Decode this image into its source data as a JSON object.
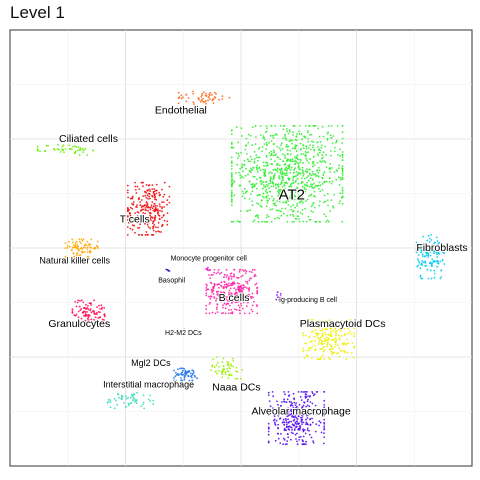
{
  "chart_data": {
    "type": "scatter",
    "title": "Level 1",
    "xlabel": "",
    "ylabel": "",
    "grid": true,
    "legend": "none",
    "xlim": [
      0,
      100
    ],
    "ylim": [
      0,
      100
    ],
    "clusters": [
      {
        "name": "AT2",
        "color": "#33ee33",
        "center": [
          60,
          67
        ],
        "spread": [
          12,
          11
        ],
        "count": 900,
        "label_pos": [
          61,
          62
        ],
        "label_size": "large"
      },
      {
        "name": "Endothelial",
        "color": "#ff6a1a",
        "center": [
          42,
          84.5
        ],
        "spread": [
          5.5,
          1.5
        ],
        "count": 55,
        "label_pos": [
          37,
          81.5
        ],
        "label_size": "medium"
      },
      {
        "name": "Ciliated cells",
        "color": "#66ee00",
        "center": [
          12,
          72.5
        ],
        "spread": [
          6,
          1.2
        ],
        "count": 45,
        "label_pos": [
          17,
          75
        ],
        "label_size": "medium"
      },
      {
        "name": "T cells",
        "color": "#ee1111",
        "center": [
          30,
          59
        ],
        "spread": [
          4.5,
          6
        ],
        "count": 260,
        "label_pos": [
          27,
          56.5
        ],
        "label_size": "medium"
      },
      {
        "name": "Natural killer cells",
        "color": "#ffaa00",
        "center": [
          15.5,
          50
        ],
        "spread": [
          3.5,
          2
        ],
        "count": 85,
        "label_pos": [
          14,
          47
        ],
        "label_size": "small"
      },
      {
        "name": "Monocyte progenitor cell",
        "color": "#ee00cc",
        "center": [
          43,
          45
        ],
        "spread": [
          0.8,
          0.5
        ],
        "count": 6,
        "label_pos": [
          43,
          47.5
        ],
        "label_size": "tiny"
      },
      {
        "name": "Basophil",
        "color": "#3300cc",
        "center": [
          34,
          45
        ],
        "spread": [
          0.5,
          0.4
        ],
        "count": 4,
        "label_pos": [
          35,
          42.5
        ],
        "label_size": "tiny"
      },
      {
        "name": "B cells",
        "color": "#ff2aa8",
        "center": [
          48,
          40
        ],
        "spread": [
          5.5,
          5
        ],
        "count": 320,
        "label_pos": [
          48.5,
          38.5
        ],
        "label_size": "medium"
      },
      {
        "name": "Ig-producing B cell",
        "color": "#8800dd",
        "center": [
          58,
          39
        ],
        "spread": [
          0.6,
          0.9
        ],
        "count": 8,
        "label_pos": [
          64.5,
          38
        ],
        "label_size": "tiny"
      },
      {
        "name": "Granulocytes",
        "color": "#ff1155",
        "center": [
          17,
          35.5
        ],
        "spread": [
          3.5,
          2.5
        ],
        "count": 95,
        "label_pos": [
          15,
          32.5
        ],
        "label_size": "medium"
      },
      {
        "name": "Fibroblasts",
        "color": "#00ccee",
        "center": [
          91,
          48
        ],
        "spread": [
          3,
          5
        ],
        "count": 120,
        "label_pos": [
          93.5,
          50
        ],
        "label_size": "medium"
      },
      {
        "name": "Plasmacytoid DCs",
        "color": "#eeee00",
        "center": [
          69,
          29
        ],
        "spread": [
          5.5,
          4.5
        ],
        "count": 200,
        "label_pos": [
          72,
          32.5
        ],
        "label_size": "medium"
      },
      {
        "name": "H2-M2 DCs",
        "color": "#22dd66",
        "center": [
          37.5,
          31
        ],
        "spread": [
          0.6,
          0.4
        ],
        "count": 4,
        "label_pos": [
          37.5,
          30.5
        ],
        "label_size": "tiny"
      },
      {
        "name": "Mgl2 DCs",
        "color": "#2277ee",
        "center": [
          38,
          21
        ],
        "spread": [
          2.5,
          1.4
        ],
        "count": 60,
        "label_pos": [
          30.5,
          23.5
        ],
        "label_size": "small"
      },
      {
        "name": "Naaa DCs",
        "color": "#99ee00",
        "center": [
          47,
          22.5
        ],
        "spread": [
          3.5,
          2.5
        ],
        "count": 55,
        "label_pos": [
          49,
          18
        ],
        "label_size": "medium"
      },
      {
        "name": "Interstitial macrophage",
        "color": "#33ddbb",
        "center": [
          26,
          15
        ],
        "spread": [
          5,
          1.8
        ],
        "count": 55,
        "label_pos": [
          30,
          18.5
        ],
        "label_size": "small"
      },
      {
        "name": "Alveolar macrophage",
        "color": "#5511ee",
        "center": [
          62,
          11
        ],
        "spread": [
          6,
          6
        ],
        "count": 330,
        "label_pos": [
          63,
          12.5
        ],
        "label_size": "medium"
      }
    ]
  }
}
